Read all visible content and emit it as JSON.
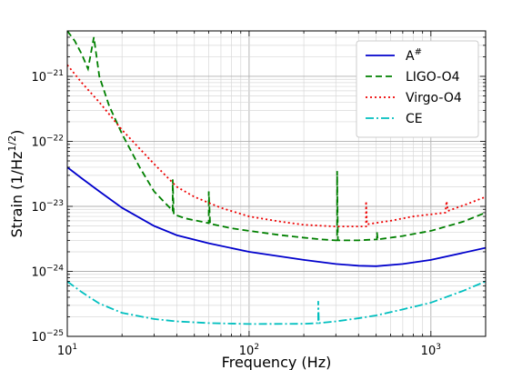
{
  "chart_data": {
    "type": "line",
    "title": "",
    "xlabel": "Frequency (Hz)",
    "ylabel": "Strain (1/Hz^(1/2))",
    "xscale": "log",
    "yscale": "log",
    "xlim": [
      10,
      2000
    ],
    "ylim": [
      1e-25,
      5e-21
    ],
    "grid": true,
    "legend_position": "upper right",
    "x_ticks": [
      {
        "value": 10,
        "base": "10",
        "exp": "1"
      },
      {
        "value": 100,
        "base": "10",
        "exp": "2"
      },
      {
        "value": 1000,
        "base": "10",
        "exp": "3"
      }
    ],
    "y_ticks": [
      {
        "value": 1e-25,
        "base": "10",
        "exp": "−25"
      },
      {
        "value": 1e-24,
        "base": "10",
        "exp": "−24"
      },
      {
        "value": 1e-23,
        "base": "10",
        "exp": "−23"
      },
      {
        "value": 1e-22,
        "base": "10",
        "exp": "−22"
      },
      {
        "value": 1e-21,
        "base": "10",
        "exp": "−21"
      }
    ],
    "series": [
      {
        "name": "A#",
        "legend_base": "A",
        "legend_sup": "#",
        "color": "#0000cc",
        "dash": "solid",
        "points": [
          [
            10,
            4e-23
          ],
          [
            12,
            2.7e-23
          ],
          [
            15,
            1.7e-23
          ],
          [
            20,
            9.5e-24
          ],
          [
            30,
            5e-24
          ],
          [
            40,
            3.6e-24
          ],
          [
            60,
            2.7e-24
          ],
          [
            100,
            2e-24
          ],
          [
            200,
            1.5e-24
          ],
          [
            300,
            1.3e-24
          ],
          [
            400,
            1.22e-24
          ],
          [
            500,
            1.2e-24
          ],
          [
            700,
            1.3e-24
          ],
          [
            1000,
            1.5e-24
          ],
          [
            2000,
            2.3e-24
          ]
        ]
      },
      {
        "name": "LIGO-O4",
        "color": "#008000",
        "dash": "dashed",
        "points": [
          [
            10,
            5e-21
          ],
          [
            11,
            3.5e-21
          ],
          [
            12,
            2.2e-21
          ],
          [
            13,
            1.3e-21
          ],
          [
            14,
            4e-21
          ],
          [
            15,
            1e-21
          ],
          [
            17,
            3.5e-22
          ],
          [
            20,
            1.3e-22
          ],
          [
            25,
            4e-23
          ],
          [
            30,
            1.7e-23
          ],
          [
            36,
            1e-23
          ],
          [
            38,
            8.5e-24
          ],
          [
            38,
            2.6e-23
          ],
          [
            38.5,
            7.5e-24
          ],
          [
            45,
            6.5e-24
          ],
          [
            55,
            5.8e-24
          ],
          [
            60,
            5.5e-24
          ],
          [
            60,
            1.7e-23
          ],
          [
            61,
            5.4e-24
          ],
          [
            80,
            4.6e-24
          ],
          [
            100,
            4.2e-24
          ],
          [
            150,
            3.6e-24
          ],
          [
            200,
            3.3e-24
          ],
          [
            250,
            3.1e-24
          ],
          [
            300,
            3e-24
          ],
          [
            305,
            3e-24
          ],
          [
            305,
            3.5e-23
          ],
          [
            308,
            3e-24
          ],
          [
            400,
            3e-24
          ],
          [
            500,
            3.1e-24
          ],
          [
            505,
            3.1e-24
          ],
          [
            505,
            4e-24
          ],
          [
            510,
            3.1e-24
          ],
          [
            700,
            3.5e-24
          ],
          [
            1000,
            4.2e-24
          ],
          [
            1500,
            5.8e-24
          ],
          [
            2000,
            8e-24
          ]
        ]
      },
      {
        "name": "Virgo-O4",
        "color": "#ee0000",
        "dash": "dotted",
        "points": [
          [
            10,
            1.5e-21
          ],
          [
            12,
            8e-22
          ],
          [
            15,
            4e-22
          ],
          [
            20,
            1.5e-22
          ],
          [
            30,
            4.5e-23
          ],
          [
            40,
            2e-23
          ],
          [
            50,
            1.4e-23
          ],
          [
            70,
            9.5e-24
          ],
          [
            100,
            7e-24
          ],
          [
            150,
            5.8e-24
          ],
          [
            200,
            5.2e-24
          ],
          [
            300,
            4.9e-24
          ],
          [
            440,
            4.9e-24
          ],
          [
            440,
            1.2e-23
          ],
          [
            445,
            5.3e-24
          ],
          [
            600,
            6e-24
          ],
          [
            800,
            7e-24
          ],
          [
            1200,
            8e-24
          ],
          [
            1220,
            1.2e-23
          ],
          [
            1240,
            8.5e-24
          ],
          [
            1600,
            1.1e-23
          ],
          [
            2000,
            1.4e-23
          ]
        ]
      },
      {
        "name": "CE",
        "color": "#00bfbf",
        "dash": "dashdot",
        "points": [
          [
            10,
            7e-25
          ],
          [
            12,
            4.8e-25
          ],
          [
            15,
            3.2e-25
          ],
          [
            20,
            2.3e-25
          ],
          [
            30,
            1.85e-25
          ],
          [
            40,
            1.7e-25
          ],
          [
            60,
            1.6e-25
          ],
          [
            100,
            1.55e-25
          ],
          [
            200,
            1.56e-25
          ],
          [
            240,
            1.6e-25
          ],
          [
            240,
            3.5e-25
          ],
          [
            242,
            1.6e-25
          ],
          [
            300,
            1.7e-25
          ],
          [
            400,
            1.9e-25
          ],
          [
            500,
            2.1e-25
          ],
          [
            700,
            2.6e-25
          ],
          [
            1000,
            3.3e-25
          ],
          [
            1500,
            5e-25
          ],
          [
            2000,
            7e-25
          ]
        ]
      }
    ]
  }
}
